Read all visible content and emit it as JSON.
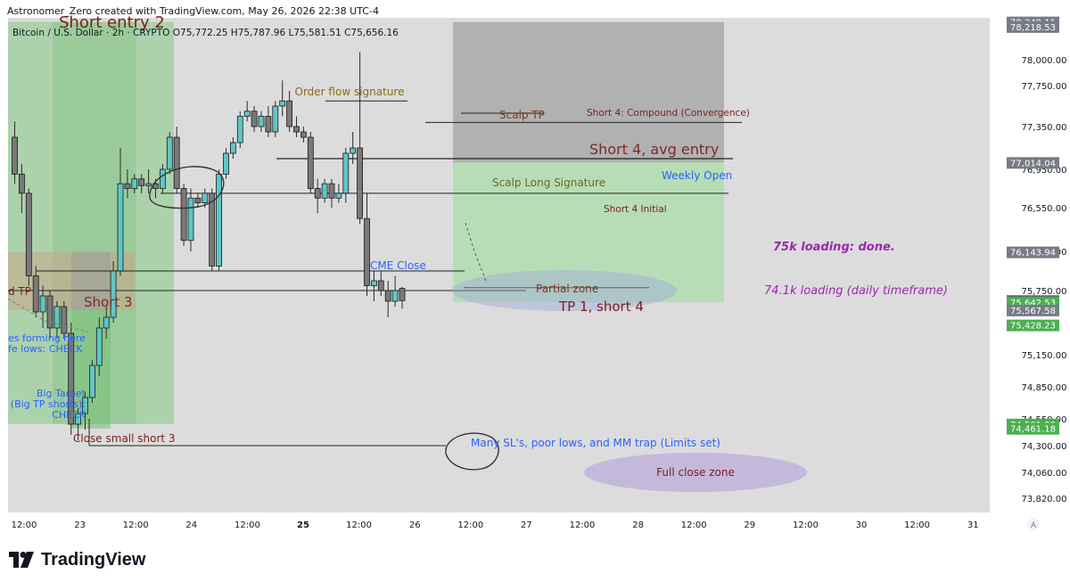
{
  "header": {
    "attribution": "Astronomer_Zero created with TradingView.com, May 26, 2026 22:38 UTC-4"
  },
  "brand": {
    "name": "TradingView",
    "logo_icon": "tradingview-logo-icon"
  },
  "chart_data": {
    "type": "candlestick",
    "symbol_line": "Bitcoin / U.S. Dollar · 2h · CRYPTO  O75,772.25  H75,787.96  L75,581.51  C75,656.16",
    "ylim": [
      73650,
      78300
    ],
    "price_ticks": [
      "78,000.00",
      "77,750.00",
      "77,350.00",
      "76,950.00",
      "76,550.00",
      "76,150.00",
      "75,750.00",
      "75,150.00",
      "74,850.00",
      "74,550.00",
      "74,300.00",
      "74,060.00",
      "73,820.00"
    ],
    "time_ticks": [
      {
        "label": "12:00",
        "bold": false
      },
      {
        "label": "23",
        "bold": false
      },
      {
        "label": "12:00",
        "bold": false
      },
      {
        "label": "24",
        "bold": false
      },
      {
        "label": "12:00",
        "bold": false
      },
      {
        "label": "25",
        "bold": true
      },
      {
        "label": "12:00",
        "bold": false
      },
      {
        "label": "26",
        "bold": false
      },
      {
        "label": "12:00",
        "bold": false
      },
      {
        "label": "27",
        "bold": false
      },
      {
        "label": "12:00",
        "bold": false
      },
      {
        "label": "28",
        "bold": false
      },
      {
        "label": "12:00",
        "bold": false
      },
      {
        "label": "29",
        "bold": false
      },
      {
        "label": "12:00",
        "bold": false
      },
      {
        "label": "30",
        "bold": false
      },
      {
        "label": "12:00",
        "bold": false
      },
      {
        "label": "31",
        "bold": false
      }
    ],
    "axis_corner_label": "A",
    "price_badges": [
      {
        "label": "78,249.11",
        "value": 78249.11,
        "color": "#787b86"
      },
      {
        "label": "78,218.53",
        "value": 78218.53,
        "color": "#787b86"
      },
      {
        "label": "77,014.04",
        "value": 77014.04,
        "color": "#787b86"
      },
      {
        "label": "76,143.94",
        "value": 76143.94,
        "color": "#787b86"
      },
      {
        "label": "75,656.16",
        "value": 75656.16,
        "color": "#5d606b"
      },
      {
        "label": "75,642.53",
        "value": 75642.53,
        "color": "#4caf50"
      },
      {
        "label": "75,567.58",
        "value": 75567.58,
        "color": "#787b86"
      },
      {
        "label": "75,428.23",
        "value": 75428.23,
        "color": "#4caf50"
      },
      {
        "label": "74,501.99",
        "value": 74501.99,
        "color": "#4caf50"
      },
      {
        "label": "74,461.18",
        "value": 74461.18,
        "color": "#4caf50"
      }
    ],
    "candles": [
      {
        "o": 77250,
        "h": 77400,
        "l": 76800,
        "c": 76900
      },
      {
        "o": 76900,
        "h": 77000,
        "l": 76500,
        "c": 76700
      },
      {
        "o": 76700,
        "h": 76750,
        "l": 75800,
        "c": 75900
      },
      {
        "o": 75900,
        "h": 76000,
        "l": 75500,
        "c": 75550
      },
      {
        "o": 75550,
        "h": 75800,
        "l": 75400,
        "c": 75700
      },
      {
        "o": 75700,
        "h": 75750,
        "l": 75300,
        "c": 75400
      },
      {
        "o": 75400,
        "h": 75650,
        "l": 75300,
        "c": 75600
      },
      {
        "o": 75600,
        "h": 75650,
        "l": 75300,
        "c": 75350
      },
      {
        "o": 75350,
        "h": 75450,
        "l": 74400,
        "c": 74500
      },
      {
        "o": 74500,
        "h": 74650,
        "l": 74350,
        "c": 74600
      },
      {
        "o": 74600,
        "h": 74800,
        "l": 74450,
        "c": 74750
      },
      {
        "o": 74750,
        "h": 75100,
        "l": 74700,
        "c": 75050
      },
      {
        "o": 75050,
        "h": 75500,
        "l": 74950,
        "c": 75400
      },
      {
        "o": 75400,
        "h": 75600,
        "l": 75300,
        "c": 75500
      },
      {
        "o": 75500,
        "h": 76050,
        "l": 75450,
        "c": 75950
      },
      {
        "o": 75950,
        "h": 77150,
        "l": 75900,
        "c": 76800
      },
      {
        "o": 76800,
        "h": 76950,
        "l": 76650,
        "c": 76750
      },
      {
        "o": 76750,
        "h": 76900,
        "l": 76700,
        "c": 76850
      },
      {
        "o": 76850,
        "h": 76900,
        "l": 76700,
        "c": 76780
      },
      {
        "o": 76780,
        "h": 76950,
        "l": 76700,
        "c": 76800
      },
      {
        "o": 76800,
        "h": 76850,
        "l": 76650,
        "c": 76750
      },
      {
        "o": 76750,
        "h": 77000,
        "l": 76700,
        "c": 76950
      },
      {
        "o": 76950,
        "h": 77300,
        "l": 76900,
        "c": 77250
      },
      {
        "o": 77250,
        "h": 77350,
        "l": 76700,
        "c": 76750
      },
      {
        "o": 76750,
        "h": 76800,
        "l": 76200,
        "c": 76250
      },
      {
        "o": 76250,
        "h": 76750,
        "l": 76150,
        "c": 76650
      },
      {
        "o": 76650,
        "h": 76700,
        "l": 76550,
        "c": 76600
      },
      {
        "o": 76600,
        "h": 76750,
        "l": 76550,
        "c": 76700
      },
      {
        "o": 76700,
        "h": 76750,
        "l": 75950,
        "c": 76000
      },
      {
        "o": 76000,
        "h": 76950,
        "l": 75950,
        "c": 76900
      },
      {
        "o": 76900,
        "h": 77150,
        "l": 76850,
        "c": 77100
      },
      {
        "o": 77100,
        "h": 77250,
        "l": 77050,
        "c": 77200
      },
      {
        "o": 77200,
        "h": 77500,
        "l": 77150,
        "c": 77450
      },
      {
        "o": 77450,
        "h": 77600,
        "l": 77400,
        "c": 77500
      },
      {
        "o": 77500,
        "h": 77550,
        "l": 77300,
        "c": 77350
      },
      {
        "o": 77350,
        "h": 77500,
        "l": 77300,
        "c": 77450
      },
      {
        "o": 77450,
        "h": 77550,
        "l": 77250,
        "c": 77300
      },
      {
        "o": 77300,
        "h": 77600,
        "l": 77250,
        "c": 77550
      },
      {
        "o": 77550,
        "h": 77800,
        "l": 77450,
        "c": 77600
      },
      {
        "o": 77600,
        "h": 77700,
        "l": 77300,
        "c": 77350
      },
      {
        "o": 77350,
        "h": 77450,
        "l": 77250,
        "c": 77300
      },
      {
        "o": 77300,
        "h": 77350,
        "l": 77200,
        "c": 77250
      },
      {
        "o": 77250,
        "h": 77300,
        "l": 76700,
        "c": 76750
      },
      {
        "o": 76750,
        "h": 76850,
        "l": 76500,
        "c": 76650
      },
      {
        "o": 76650,
        "h": 76850,
        "l": 76600,
        "c": 76800
      },
      {
        "o": 76800,
        "h": 76850,
        "l": 76550,
        "c": 76650
      },
      {
        "o": 76650,
        "h": 76800,
        "l": 76600,
        "c": 76700
      },
      {
        "o": 76700,
        "h": 77150,
        "l": 76600,
        "c": 77100
      },
      {
        "o": 77100,
        "h": 77300,
        "l": 77000,
        "c": 77150
      },
      {
        "o": 77150,
        "h": 78050,
        "l": 76400,
        "c": 76450
      },
      {
        "o": 76450,
        "h": 76700,
        "l": 75700,
        "c": 75800
      },
      {
        "o": 75800,
        "h": 75950,
        "l": 75650,
        "c": 75850
      },
      {
        "o": 75850,
        "h": 75950,
        "l": 75700,
        "c": 75750
      },
      {
        "o": 75750,
        "h": 75850,
        "l": 75500,
        "c": 75650
      },
      {
        "o": 75650,
        "h": 75900,
        "l": 75600,
        "c": 75750
      },
      {
        "o": 75772.25,
        "h": 75787.96,
        "l": 75581.51,
        "c": 75656.16
      }
    ],
    "annotations": {
      "short_entry_2": "Short entry 2",
      "order_flow_signature": "Order flow signature",
      "scalp_tp": "Scalp TP",
      "short4_compound": "Short 4: Compound (Convergence)",
      "short4_avg_entry": "Short 4, avg entry",
      "weekly_open": "Weekly Open",
      "scalp_long_signature": "Scalp Long Signature",
      "short4_initial": "Short 4 Initial",
      "loading_75k": "75k loading: done.",
      "cme_close": "CME Close",
      "loading_74k": "74.1k loading (daily timeframe)",
      "partial_zone": "Partial zone",
      "tp1_short4": "TP 1, short 4",
      "tp_partial": "d TP",
      "short_3": "Short 3",
      "lows_forming": "es forming here",
      "life_lows_check": "fe lows: CHECK",
      "big_target": "Big Target",
      "big_tp_shorts": "(Big TP shorts):",
      "check": "CHECK",
      "close_small_short3": "Close small short 3",
      "mm_trap": "Many SL's, poor lows, and MM trap (Limits set)",
      "full_close_zone": "Full close zone"
    },
    "levels": {
      "order_flow": 77600,
      "scalp_tp": 77480,
      "scalp_tp_short": 77390,
      "avg_entry": 77050,
      "weekly_open": 77014.04,
      "short4_initial": 76700,
      "cme_close": 75950,
      "tp1": 75750,
      "tp1_right": 75780,
      "poor_lows": 74300
    },
    "zones": {
      "short4_risk": {
        "top": 78249.11,
        "bottom": 77014.04
      },
      "short4_reward": {
        "top": 77014.04,
        "bottom": 75642.53
      },
      "short_entry2_reward": {
        "top": 78249.11,
        "bottom": 74501.99
      },
      "short3_risk": {
        "top": 76143.94,
        "bottom": 75567.58
      },
      "short3_reward": {
        "top": 75567.58,
        "bottom": 74461.18
      },
      "left_long": {
        "top": 76700,
        "bottom": 74501.99
      }
    }
  }
}
